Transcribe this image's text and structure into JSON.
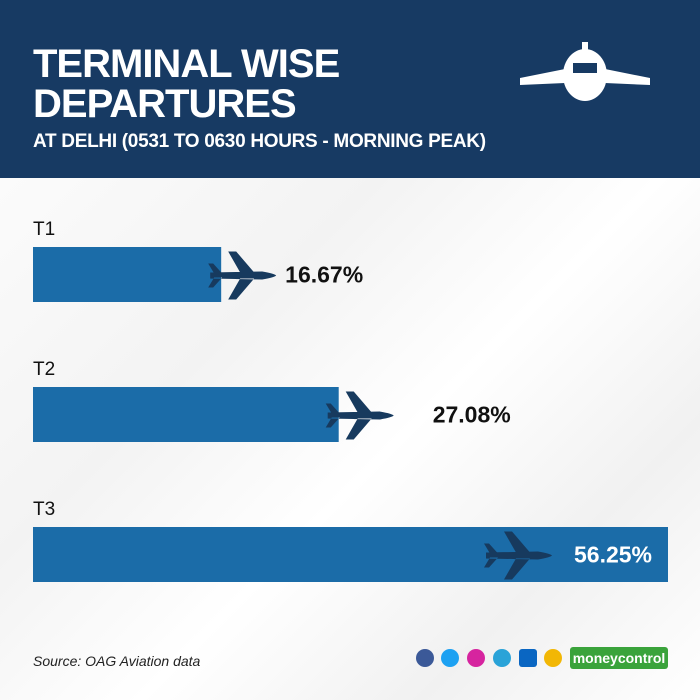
{
  "chart_data": {
    "type": "hbar",
    "title": "TERMINAL WISE DEPARTURES",
    "subtitle": "AT DELHI (0531 TO 0630 HOURS - MORNING PEAK)",
    "categories": [
      "T1",
      "T2",
      "T3"
    ],
    "values": [
      16.67,
      27.08,
      56.25
    ],
    "value_labels": [
      "16.67%",
      "27.08%",
      "56.25%"
    ],
    "color": "#1b6ca8",
    "source": "Source: OAG Aviation data",
    "logo": "moneycontrol"
  }
}
